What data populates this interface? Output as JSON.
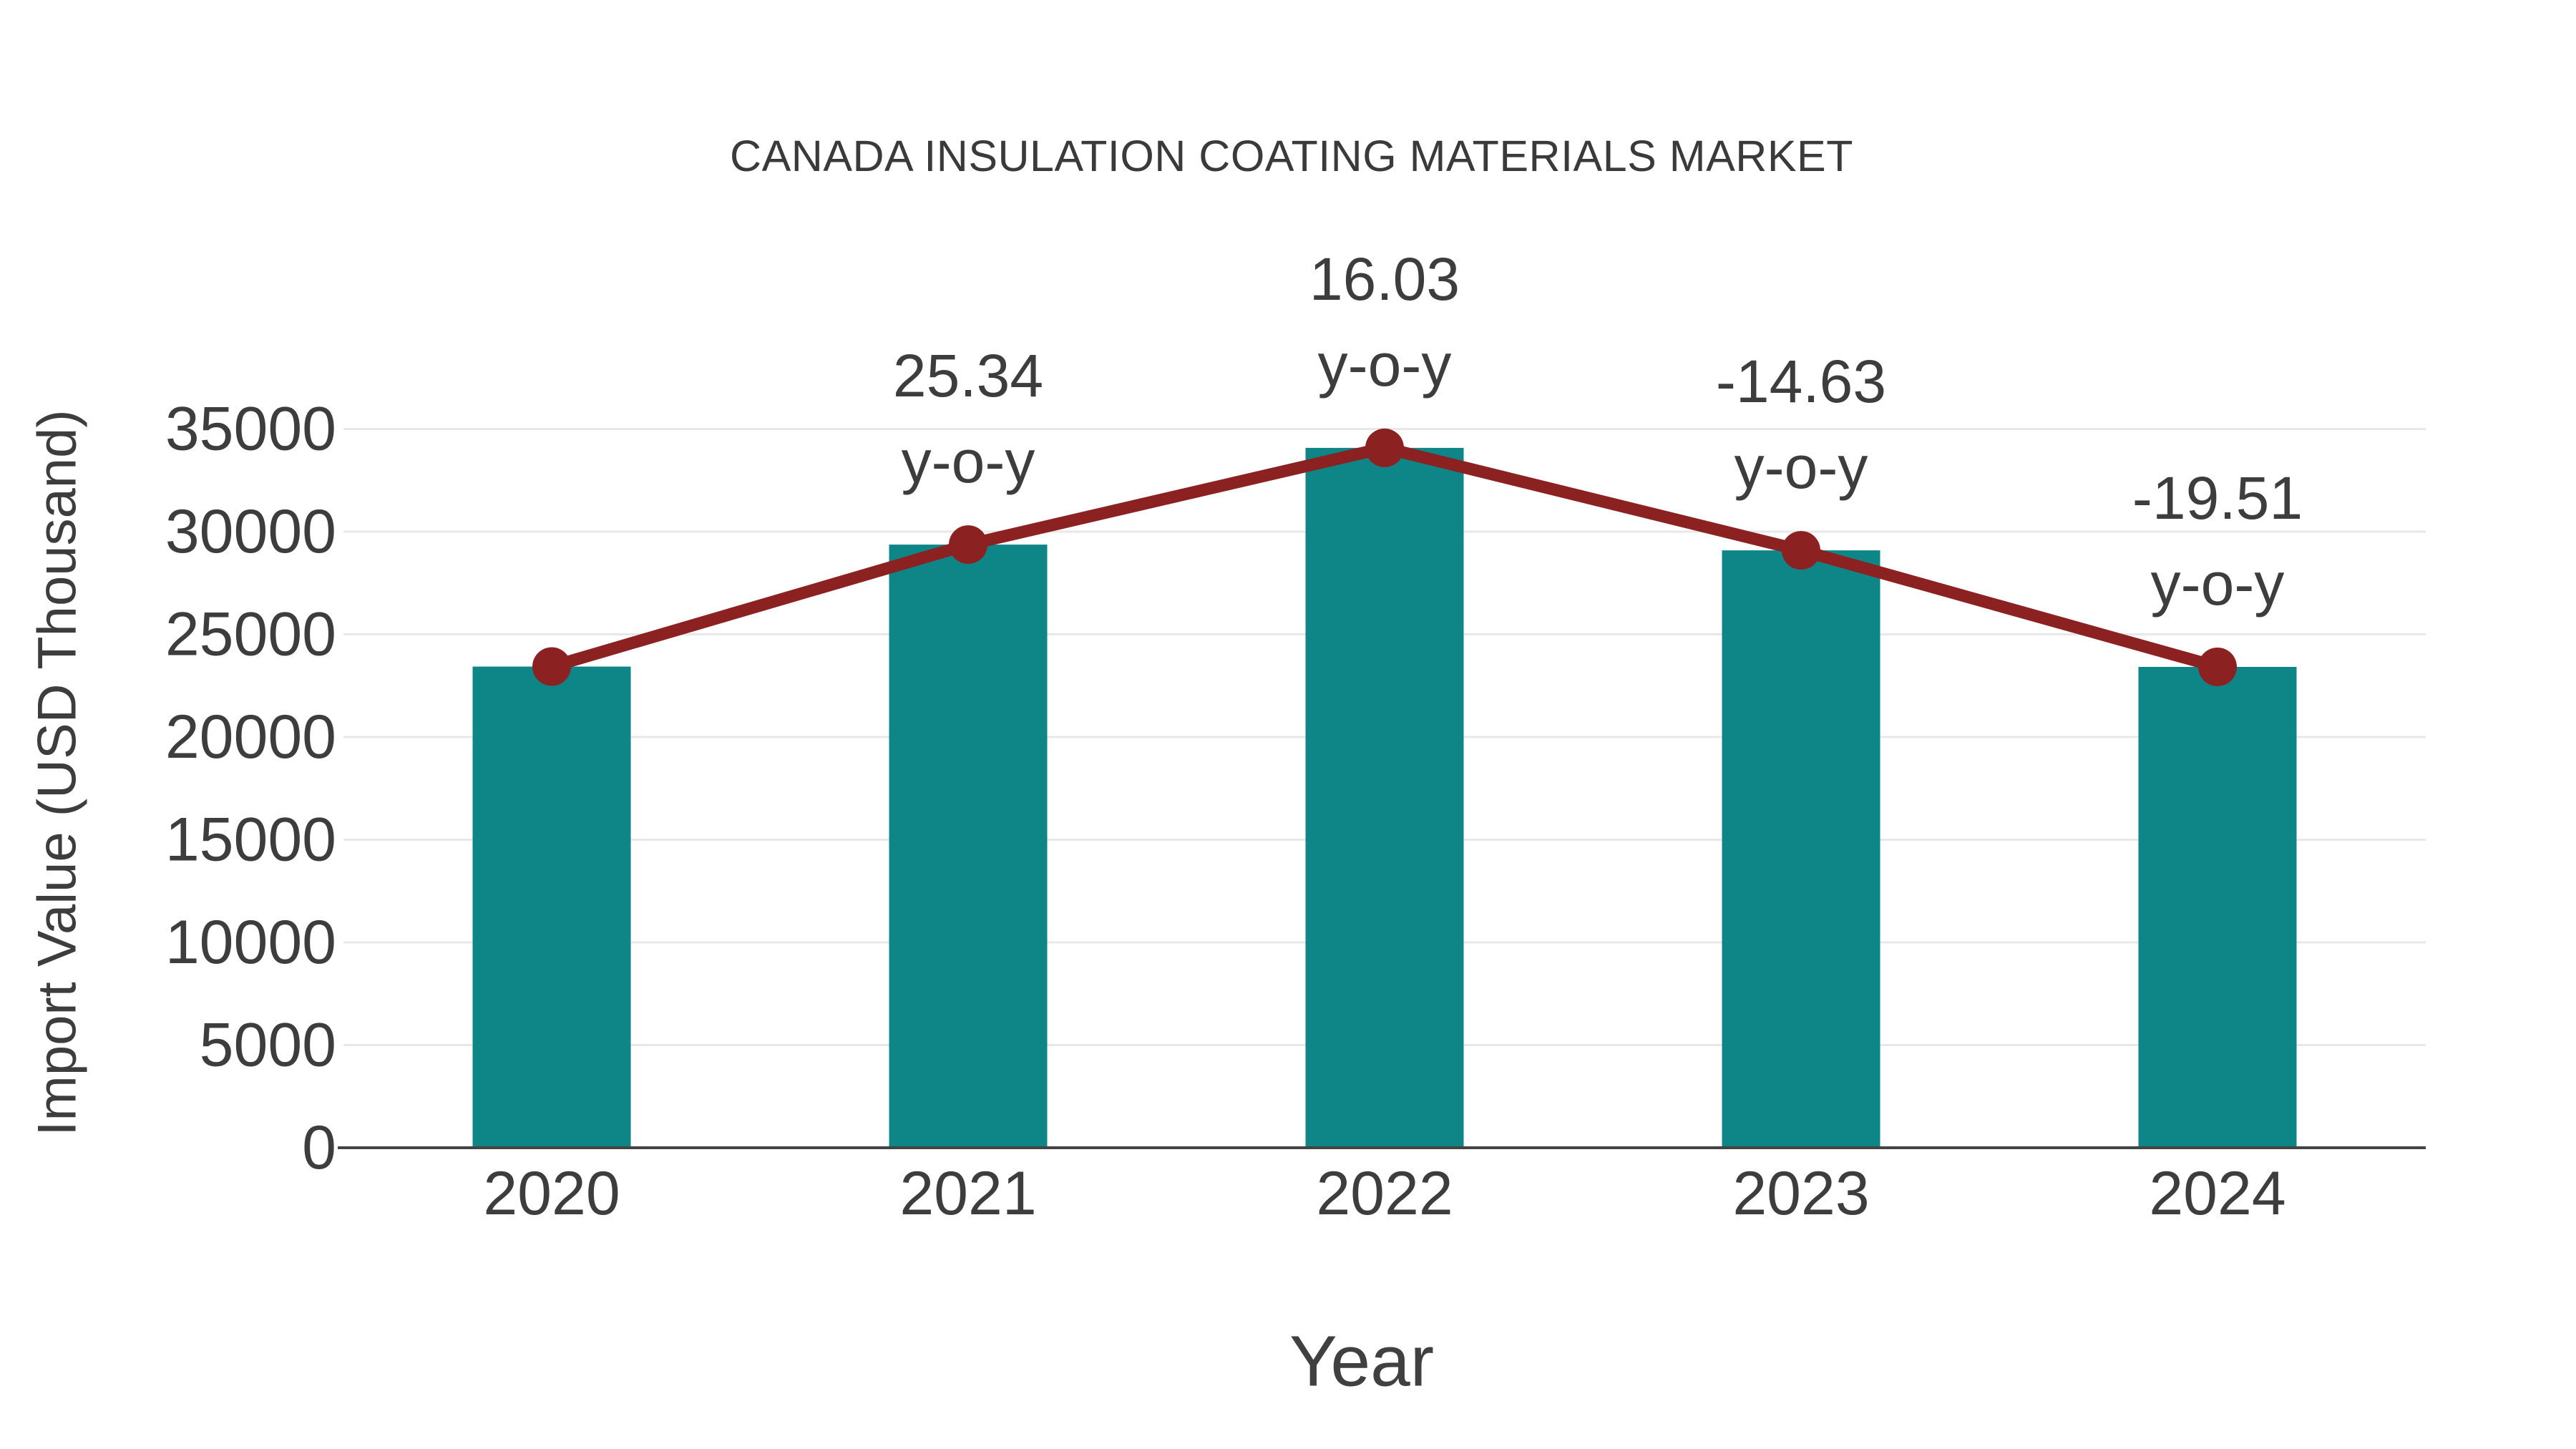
{
  "chart_data": {
    "type": "bar",
    "title": "CANADA INSULATION COATING MATERIALS MARKET",
    "xlabel": "Year",
    "ylabel": "Import Value (USD Thousand)",
    "categories": [
      "2020",
      "2021",
      "2022",
      "2023",
      "2024"
    ],
    "series": [
      {
        "name": "Import Value",
        "type": "bar",
        "color": "#0E8688",
        "values": [
          23430,
          29370,
          34080,
          29090,
          23415
        ]
      },
      {
        "name": "Year-over-year trend line",
        "type": "line",
        "color": "#8B2121",
        "values": [
          23430,
          29370,
          34080,
          29090,
          23415
        ]
      }
    ],
    "point_labels": [
      "",
      "25.34",
      "16.03",
      "-14.63",
      "-19.51"
    ],
    "point_label_suffix": "y-o-y",
    "yticks": [
      0,
      5000,
      10000,
      15000,
      20000,
      25000,
      30000,
      35000
    ],
    "ylim": [
      0,
      35000
    ],
    "grid": "horizontal",
    "legend": "none",
    "colors": {
      "grid": "#E8E8E8",
      "axis": "#444444",
      "text": "#3D3D3D",
      "title": "#3A3A3A",
      "background": "#FFFFFF"
    }
  }
}
